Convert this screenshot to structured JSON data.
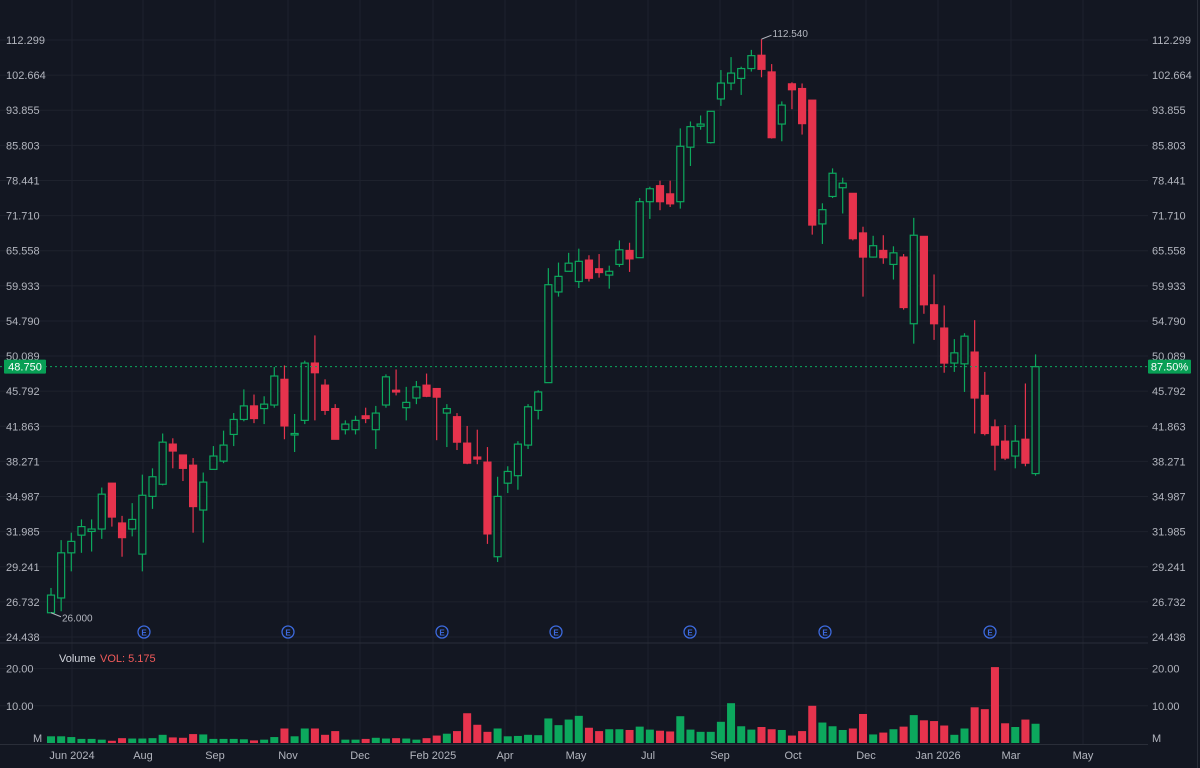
{
  "colors": {
    "background": "#131722",
    "grid": "#1e222d",
    "up": "#0ca85d",
    "down": "#e6334d",
    "axis_text": "#b2b5be",
    "earnings": "#3d6be0",
    "vol_label": "#f05a5a"
  },
  "chart_data": {
    "type": "candlestick",
    "interval": "weekly",
    "y_scale": "log",
    "grid": true,
    "price_axis_ticks": [
      "112.299",
      "102.664",
      "93.855",
      "85.803",
      "78.441",
      "71.710",
      "65.558",
      "59.933",
      "54.790",
      "50.089",
      "45.792",
      "41.863",
      "38.271",
      "34.987",
      "31.985",
      "29.241",
      "26.732",
      "24.438"
    ],
    "ylim": [
      24.438,
      112.299
    ],
    "time_axis_labels": [
      "Jun 2024",
      "Aug",
      "Sep",
      "Nov",
      "Dec",
      "Feb 2025",
      "Apr",
      "May",
      "Jul",
      "Sep",
      "Oct",
      "Dec",
      "Jan 2026",
      "Mar",
      "May"
    ],
    "ohlc_fields": [
      "open",
      "high",
      "low",
      "close"
    ],
    "ohlc": [
      [
        26.0,
        27.7,
        26.0,
        27.2
      ],
      [
        27.0,
        31.3,
        26.1,
        30.3
      ],
      [
        30.3,
        31.9,
        28.9,
        31.2
      ],
      [
        31.7,
        33.0,
        30.3,
        32.4
      ],
      [
        32.0,
        33.0,
        30.4,
        32.2
      ],
      [
        32.2,
        35.8,
        31.4,
        35.2
      ],
      [
        36.2,
        36.2,
        32.4,
        33.2
      ],
      [
        32.7,
        33.3,
        30.0,
        31.5
      ],
      [
        32.2,
        34.4,
        31.6,
        33.0
      ],
      [
        30.2,
        37.0,
        28.9,
        35.1
      ],
      [
        35.0,
        37.6,
        33.9,
        36.8
      ],
      [
        36.1,
        41.1,
        36.0,
        40.2
      ],
      [
        40.0,
        40.6,
        37.6,
        39.3
      ],
      [
        38.9,
        38.9,
        36.4,
        37.6
      ],
      [
        37.9,
        38.6,
        31.9,
        34.1
      ],
      [
        33.8,
        37.2,
        31.1,
        36.3
      ],
      [
        37.5,
        39.8,
        37.5,
        38.8
      ],
      [
        38.3,
        41.4,
        38.1,
        39.9
      ],
      [
        41.0,
        43.3,
        39.8,
        42.6
      ],
      [
        42.6,
        46.0,
        42.4,
        44.1
      ],
      [
        44.1,
        45.4,
        42.2,
        42.7
      ],
      [
        43.8,
        45.2,
        42.1,
        44.3
      ],
      [
        44.2,
        48.7,
        43.9,
        47.6
      ],
      [
        47.2,
        48.9,
        40.5,
        41.9
      ],
      [
        41.0,
        43.2,
        39.2,
        41.1
      ],
      [
        42.5,
        49.5,
        42.1,
        49.2
      ],
      [
        49.2,
        52.8,
        42.5,
        48.0
      ],
      [
        46.5,
        47.2,
        43.1,
        43.6
      ],
      [
        43.8,
        44.3,
        40.5,
        40.5
      ],
      [
        41.5,
        42.5,
        41.0,
        42.1
      ],
      [
        41.5,
        43.0,
        41.0,
        42.5
      ],
      [
        43.0,
        43.9,
        42.2,
        42.7
      ],
      [
        41.5,
        44.1,
        39.5,
        43.3
      ],
      [
        44.2,
        47.8,
        43.9,
        47.5
      ],
      [
        45.9,
        48.4,
        45.3,
        45.7
      ],
      [
        43.9,
        46.3,
        42.5,
        44.5
      ],
      [
        45.0,
        47.0,
        44.3,
        46.3
      ],
      [
        46.5,
        47.9,
        45.1,
        45.2
      ],
      [
        46.1,
        46.1,
        40.4,
        45.1
      ],
      [
        43.3,
        44.3,
        39.7,
        43.8
      ],
      [
        42.9,
        43.3,
        39.4,
        40.2
      ],
      [
        40.1,
        41.9,
        38.0,
        38.1
      ],
      [
        38.7,
        41.5,
        38.0,
        38.5
      ],
      [
        38.2,
        39.7,
        31.0,
        31.8
      ],
      [
        30.0,
        36.8,
        29.6,
        35.0
      ],
      [
        36.2,
        37.8,
        35.3,
        37.3
      ],
      [
        36.9,
        40.3,
        35.6,
        40.0
      ],
      [
        39.9,
        44.3,
        39.5,
        44.0
      ],
      [
        43.6,
        45.9,
        42.6,
        45.7
      ],
      [
        46.8,
        62.7,
        46.8,
        60.1
      ],
      [
        59.0,
        63.6,
        58.3,
        61.4
      ],
      [
        62.2,
        65.2,
        62.2,
        63.5
      ],
      [
        60.6,
        65.9,
        59.6,
        63.8
      ],
      [
        64.0,
        64.8,
        60.6,
        61.1
      ],
      [
        62.6,
        65.0,
        61.2,
        62.0
      ],
      [
        61.6,
        63.1,
        59.5,
        62.2
      ],
      [
        63.3,
        67.3,
        62.9,
        65.7
      ],
      [
        65.6,
        66.9,
        62.1,
        64.2
      ],
      [
        64.4,
        75.0,
        64.4,
        74.3
      ],
      [
        74.3,
        77.2,
        71.1,
        76.8
      ],
      [
        77.4,
        78.4,
        72.7,
        74.3
      ],
      [
        75.8,
        78.4,
        73.3,
        73.9
      ],
      [
        74.3,
        89.6,
        73.0,
        85.6
      ],
      [
        85.4,
        91.2,
        81.4,
        90.0
      ],
      [
        90.1,
        92.6,
        89.3,
        90.6
      ],
      [
        86.4,
        93.6,
        86.2,
        93.6
      ],
      [
        96.6,
        104.0,
        94.9,
        100.6
      ],
      [
        100.6,
        107.5,
        98.8,
        103.2
      ],
      [
        101.8,
        104.9,
        97.6,
        104.4
      ],
      [
        104.4,
        109.5,
        103.6,
        107.9
      ],
      [
        108.0,
        112.54,
        102.1,
        104.2
      ],
      [
        103.5,
        105.6,
        87.3,
        87.5
      ],
      [
        90.6,
        96.0,
        86.7,
        95.1
      ],
      [
        100.4,
        100.8,
        94.1,
        98.9
      ],
      [
        99.2,
        100.5,
        88.2,
        90.7
      ],
      [
        96.3,
        96.3,
        68.3,
        70.0
      ],
      [
        70.2,
        74.0,
        66.7,
        72.8
      ],
      [
        75.3,
        80.9,
        75.0,
        79.9
      ],
      [
        77.0,
        79.0,
        72.1,
        77.9
      ],
      [
        75.9,
        75.9,
        67.3,
        67.6
      ],
      [
        68.6,
        69.7,
        58.3,
        64.5
      ],
      [
        64.5,
        68.1,
        64.4,
        66.4
      ],
      [
        65.6,
        68.2,
        63.4,
        64.4
      ],
      [
        63.3,
        66.3,
        60.9,
        65.2
      ],
      [
        64.5,
        65.0,
        56.4,
        56.7
      ],
      [
        54.4,
        71.3,
        51.7,
        68.2
      ],
      [
        68.0,
        68.0,
        55.8,
        57.1
      ],
      [
        57.1,
        61.7,
        52.2,
        54.4
      ],
      [
        53.8,
        57.0,
        48.0,
        49.2
      ],
      [
        49.2,
        52.3,
        48.1,
        50.5
      ],
      [
        49.1,
        53.1,
        45.7,
        52.7
      ],
      [
        50.6,
        54.9,
        41.1,
        45.0
      ],
      [
        45.3,
        48.1,
        40.9,
        41.1
      ],
      [
        41.8,
        42.6,
        37.4,
        39.9
      ],
      [
        40.3,
        42.0,
        38.4,
        38.6
      ],
      [
        38.8,
        42.0,
        37.6,
        40.3
      ],
      [
        40.5,
        46.7,
        37.8,
        38.1
      ],
      [
        37.1,
        50.3,
        36.9,
        48.75
      ]
    ],
    "volume": {
      "title": "Volume",
      "value_label": "VOL: 5.175",
      "unit_label": "M",
      "axis_ticks": [
        "20.00",
        "10.00"
      ],
      "ylim": [
        0,
        21
      ],
      "values": [
        1.8,
        1.8,
        1.6,
        1.1,
        1.1,
        0.9,
        0.6,
        1.3,
        1.2,
        1.2,
        1.3,
        2.2,
        1.5,
        1.4,
        2.4,
        2.3,
        1.1,
        1.1,
        1.1,
        1.0,
        0.7,
        0.9,
        1.6,
        3.9,
        1.8,
        3.9,
        3.9,
        2.2,
        3.2,
        0.9,
        0.9,
        1.1,
        1.4,
        1.2,
        1.3,
        1.2,
        0.9,
        1.3,
        2.0,
        2.5,
        3.2,
        8.0,
        4.9,
        3.0,
        3.9,
        1.8,
        1.9,
        2.2,
        2.1,
        6.6,
        4.8,
        6.3,
        7.3,
        4.1,
        3.2,
        3.7,
        3.7,
        3.5,
        4.4,
        3.6,
        3.3,
        3.1,
        7.2,
        3.6,
        3.0,
        3.0,
        5.7,
        10.7,
        4.5,
        3.6,
        4.3,
        3.7,
        3.5,
        2.0,
        3.2,
        10.0,
        5.5,
        4.5,
        3.5,
        3.9,
        7.8,
        2.3,
        2.8,
        3.7,
        4.4,
        7.5,
        6.1,
        5.9,
        4.7,
        2.2,
        3.9,
        9.6,
        9.1,
        20.4,
        5.3,
        4.3,
        6.3,
        5.175
      ]
    },
    "annotations": {
      "high_label": "112.540",
      "low_label": "26.000",
      "last_price_label": "48.750",
      "last_change_label": "87.50%",
      "last_price": 48.75,
      "earnings_marker": "E"
    }
  }
}
